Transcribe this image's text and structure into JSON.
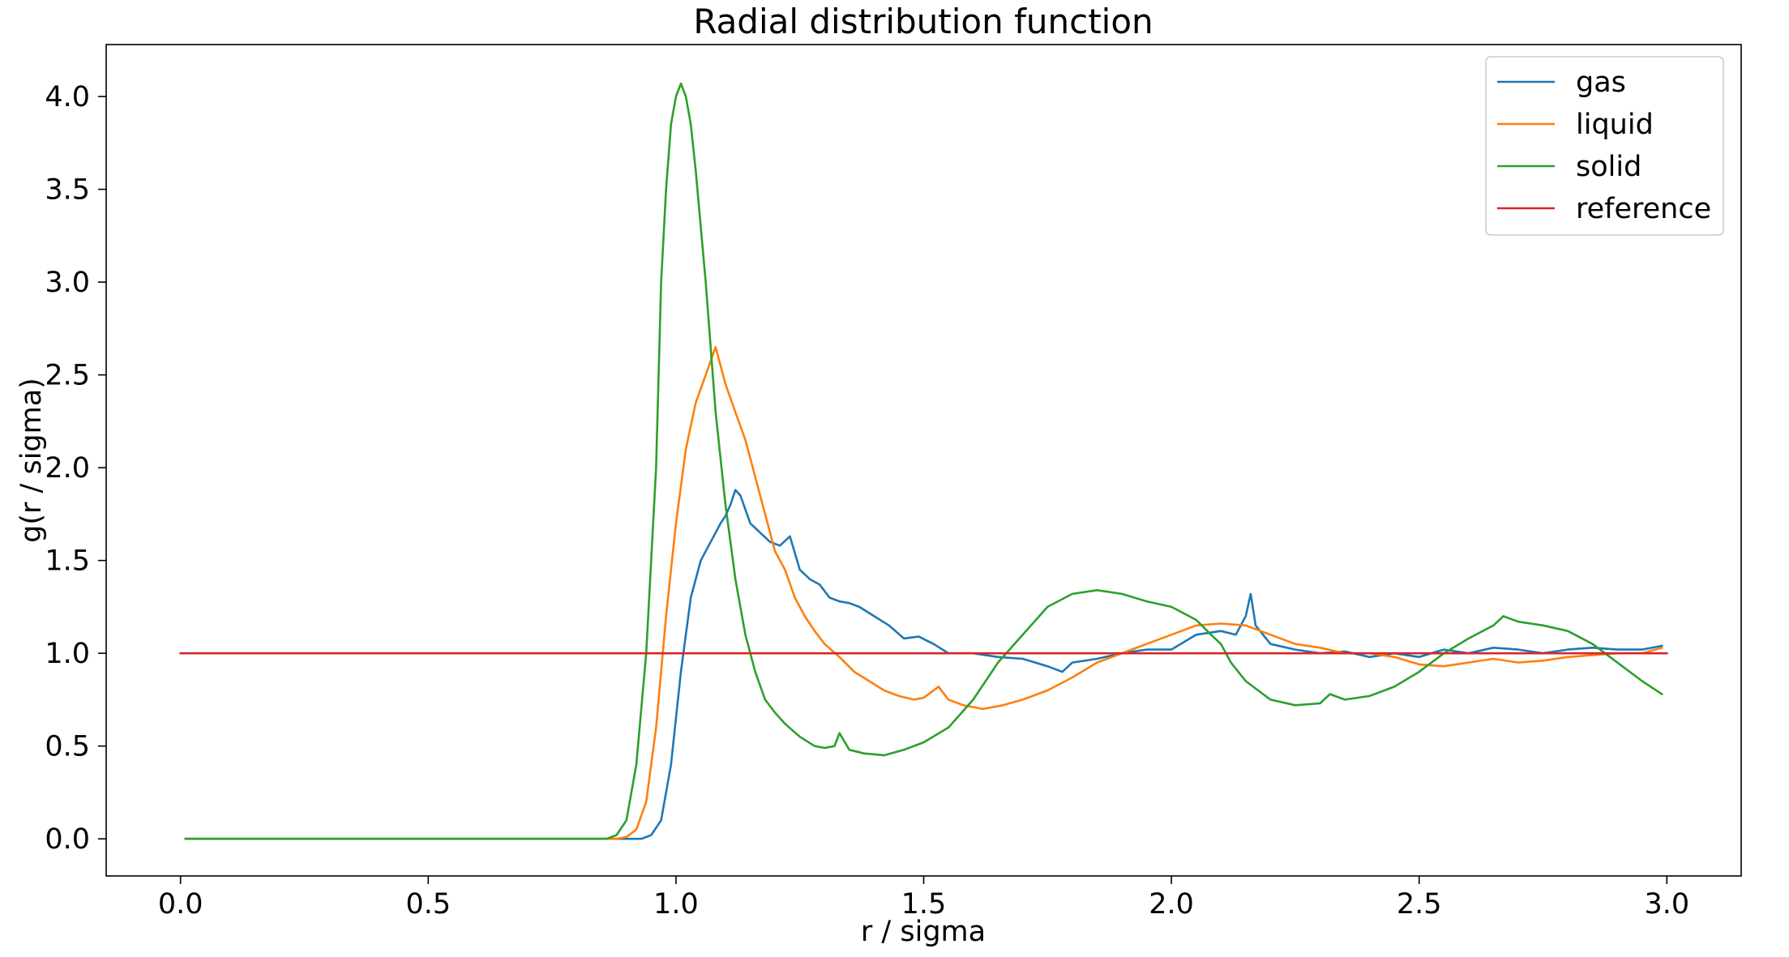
{
  "chart_data": {
    "type": "line",
    "title": "Radial distribution function",
    "xlabel": "r / sigma",
    "ylabel": "g(r / sigma)",
    "xlim": [
      -0.15,
      3.15
    ],
    "ylim": [
      -0.2,
      4.28
    ],
    "xticks": [
      0.0,
      0.5,
      1.0,
      1.5,
      2.0,
      2.5,
      3.0
    ],
    "yticks": [
      0.0,
      0.5,
      1.0,
      1.5,
      2.0,
      2.5,
      3.0,
      3.5,
      4.0
    ],
    "xtick_labels": [
      "0.0",
      "0.5",
      "1.0",
      "1.5",
      "2.0",
      "2.5",
      "3.0"
    ],
    "ytick_labels": [
      "0.0",
      "0.5",
      "1.0",
      "1.5",
      "2.0",
      "2.5",
      "3.0",
      "3.5",
      "4.0"
    ],
    "grid": false,
    "legend_position": "top-right",
    "series": [
      {
        "name": "gas",
        "color": "#1f77b4",
        "points": [
          [
            0.01,
            0.0
          ],
          [
            0.5,
            0.0
          ],
          [
            0.93,
            0.0
          ],
          [
            0.95,
            0.02
          ],
          [
            0.97,
            0.1
          ],
          [
            0.99,
            0.4
          ],
          [
            1.01,
            0.9
          ],
          [
            1.03,
            1.3
          ],
          [
            1.05,
            1.5
          ],
          [
            1.07,
            1.6
          ],
          [
            1.09,
            1.7
          ],
          [
            1.1,
            1.74
          ],
          [
            1.11,
            1.8
          ],
          [
            1.12,
            1.88
          ],
          [
            1.13,
            1.85
          ],
          [
            1.15,
            1.7
          ],
          [
            1.17,
            1.65
          ],
          [
            1.19,
            1.6
          ],
          [
            1.21,
            1.58
          ],
          [
            1.23,
            1.63
          ],
          [
            1.25,
            1.45
          ],
          [
            1.27,
            1.4
          ],
          [
            1.29,
            1.37
          ],
          [
            1.31,
            1.3
          ],
          [
            1.33,
            1.28
          ],
          [
            1.35,
            1.27
          ],
          [
            1.37,
            1.25
          ],
          [
            1.4,
            1.2
          ],
          [
            1.43,
            1.15
          ],
          [
            1.46,
            1.08
          ],
          [
            1.49,
            1.09
          ],
          [
            1.52,
            1.05
          ],
          [
            1.55,
            1.0
          ],
          [
            1.6,
            1.0
          ],
          [
            1.65,
            0.98
          ],
          [
            1.7,
            0.97
          ],
          [
            1.75,
            0.93
          ],
          [
            1.78,
            0.9
          ],
          [
            1.8,
            0.95
          ],
          [
            1.85,
            0.97
          ],
          [
            1.9,
            1.0
          ],
          [
            1.95,
            1.02
          ],
          [
            2.0,
            1.02
          ],
          [
            2.05,
            1.1
          ],
          [
            2.1,
            1.12
          ],
          [
            2.13,
            1.1
          ],
          [
            2.15,
            1.2
          ],
          [
            2.16,
            1.32
          ],
          [
            2.17,
            1.15
          ],
          [
            2.2,
            1.05
          ],
          [
            2.25,
            1.02
          ],
          [
            2.3,
            1.0
          ],
          [
            2.35,
            1.01
          ],
          [
            2.4,
            0.98
          ],
          [
            2.45,
            1.0
          ],
          [
            2.5,
            0.98
          ],
          [
            2.55,
            1.02
          ],
          [
            2.6,
            1.0
          ],
          [
            2.65,
            1.03
          ],
          [
            2.7,
            1.02
          ],
          [
            2.75,
            1.0
          ],
          [
            2.8,
            1.02
          ],
          [
            2.85,
            1.03
          ],
          [
            2.9,
            1.02
          ],
          [
            2.95,
            1.02
          ],
          [
            2.99,
            1.04
          ]
        ]
      },
      {
        "name": "liquid",
        "color": "#ff7f0e",
        "points": [
          [
            0.01,
            0.0
          ],
          [
            0.5,
            0.0
          ],
          [
            0.88,
            0.0
          ],
          [
            0.9,
            0.01
          ],
          [
            0.92,
            0.05
          ],
          [
            0.94,
            0.2
          ],
          [
            0.96,
            0.6
          ],
          [
            0.98,
            1.2
          ],
          [
            1.0,
            1.7
          ],
          [
            1.02,
            2.1
          ],
          [
            1.04,
            2.35
          ],
          [
            1.06,
            2.5
          ],
          [
            1.08,
            2.65
          ],
          [
            1.1,
            2.45
          ],
          [
            1.12,
            2.3
          ],
          [
            1.14,
            2.15
          ],
          [
            1.16,
            1.95
          ],
          [
            1.18,
            1.75
          ],
          [
            1.2,
            1.55
          ],
          [
            1.22,
            1.45
          ],
          [
            1.24,
            1.3
          ],
          [
            1.26,
            1.2
          ],
          [
            1.28,
            1.12
          ],
          [
            1.3,
            1.05
          ],
          [
            1.33,
            0.98
          ],
          [
            1.36,
            0.9
          ],
          [
            1.39,
            0.85
          ],
          [
            1.42,
            0.8
          ],
          [
            1.45,
            0.77
          ],
          [
            1.48,
            0.75
          ],
          [
            1.5,
            0.76
          ],
          [
            1.53,
            0.82
          ],
          [
            1.55,
            0.75
          ],
          [
            1.58,
            0.72
          ],
          [
            1.62,
            0.7
          ],
          [
            1.66,
            0.72
          ],
          [
            1.7,
            0.75
          ],
          [
            1.75,
            0.8
          ],
          [
            1.8,
            0.87
          ],
          [
            1.85,
            0.95
          ],
          [
            1.9,
            1.0
          ],
          [
            1.95,
            1.05
          ],
          [
            2.0,
            1.1
          ],
          [
            2.05,
            1.15
          ],
          [
            2.1,
            1.16
          ],
          [
            2.15,
            1.15
          ],
          [
            2.2,
            1.1
          ],
          [
            2.25,
            1.05
          ],
          [
            2.3,
            1.03
          ],
          [
            2.35,
            1.0
          ],
          [
            2.4,
            1.0
          ],
          [
            2.45,
            0.98
          ],
          [
            2.5,
            0.94
          ],
          [
            2.55,
            0.93
          ],
          [
            2.6,
            0.95
          ],
          [
            2.65,
            0.97
          ],
          [
            2.7,
            0.95
          ],
          [
            2.75,
            0.96
          ],
          [
            2.8,
            0.98
          ],
          [
            2.85,
            0.99
          ],
          [
            2.9,
            1.0
          ],
          [
            2.95,
            1.0
          ],
          [
            2.99,
            1.03
          ]
        ]
      },
      {
        "name": "solid",
        "color": "#2ca02c",
        "points": [
          [
            0.01,
            0.0
          ],
          [
            0.5,
            0.0
          ],
          [
            0.86,
            0.0
          ],
          [
            0.88,
            0.02
          ],
          [
            0.9,
            0.1
          ],
          [
            0.92,
            0.4
          ],
          [
            0.94,
            1.0
          ],
          [
            0.96,
            2.0
          ],
          [
            0.97,
            3.0
          ],
          [
            0.98,
            3.5
          ],
          [
            0.99,
            3.85
          ],
          [
            1.0,
            4.0
          ],
          [
            1.01,
            4.07
          ],
          [
            1.02,
            4.0
          ],
          [
            1.03,
            3.85
          ],
          [
            1.04,
            3.6
          ],
          [
            1.06,
            3.0
          ],
          [
            1.08,
            2.3
          ],
          [
            1.1,
            1.8
          ],
          [
            1.12,
            1.4
          ],
          [
            1.14,
            1.1
          ],
          [
            1.16,
            0.9
          ],
          [
            1.18,
            0.75
          ],
          [
            1.2,
            0.68
          ],
          [
            1.22,
            0.62
          ],
          [
            1.25,
            0.55
          ],
          [
            1.28,
            0.5
          ],
          [
            1.3,
            0.49
          ],
          [
            1.32,
            0.5
          ],
          [
            1.33,
            0.57
          ],
          [
            1.35,
            0.48
          ],
          [
            1.38,
            0.46
          ],
          [
            1.42,
            0.45
          ],
          [
            1.46,
            0.48
          ],
          [
            1.5,
            0.52
          ],
          [
            1.55,
            0.6
          ],
          [
            1.6,
            0.75
          ],
          [
            1.65,
            0.95
          ],
          [
            1.7,
            1.1
          ],
          [
            1.75,
            1.25
          ],
          [
            1.8,
            1.32
          ],
          [
            1.85,
            1.34
          ],
          [
            1.9,
            1.32
          ],
          [
            1.95,
            1.28
          ],
          [
            2.0,
            1.25
          ],
          [
            2.05,
            1.18
          ],
          [
            2.08,
            1.1
          ],
          [
            2.1,
            1.05
          ],
          [
            2.12,
            0.95
          ],
          [
            2.15,
            0.85
          ],
          [
            2.2,
            0.75
          ],
          [
            2.25,
            0.72
          ],
          [
            2.3,
            0.73
          ],
          [
            2.32,
            0.78
          ],
          [
            2.35,
            0.75
          ],
          [
            2.4,
            0.77
          ],
          [
            2.45,
            0.82
          ],
          [
            2.5,
            0.9
          ],
          [
            2.55,
            1.0
          ],
          [
            2.6,
            1.08
          ],
          [
            2.65,
            1.15
          ],
          [
            2.67,
            1.2
          ],
          [
            2.7,
            1.17
          ],
          [
            2.75,
            1.15
          ],
          [
            2.8,
            1.12
          ],
          [
            2.85,
            1.05
          ],
          [
            2.9,
            0.95
          ],
          [
            2.95,
            0.85
          ],
          [
            2.99,
            0.78
          ]
        ]
      },
      {
        "name": "reference",
        "color": "#d62728",
        "points": [
          [
            0.0,
            1.0
          ],
          [
            3.0,
            1.0
          ]
        ]
      }
    ]
  }
}
